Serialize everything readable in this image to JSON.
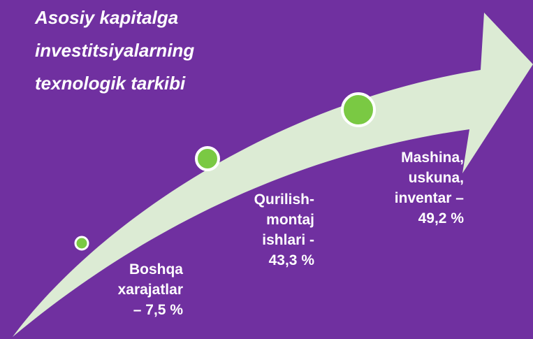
{
  "title": {
    "lines": [
      "Asosiy kapitalga",
      "investitsiyalarning",
      "texnologik  tarkibi"
    ]
  },
  "nodes": [
    {
      "lines": [
        "Boshqa",
        "xarajatlar",
        "– 7,5 %"
      ]
    },
    {
      "lines": [
        "Qurilish-",
        "montaj",
        "ishlari -",
        "43,3 %"
      ]
    },
    {
      "lines": [
        "Mashina,",
        "uskuna,",
        "inventar –",
        "49,2 %"
      ]
    }
  ]
}
